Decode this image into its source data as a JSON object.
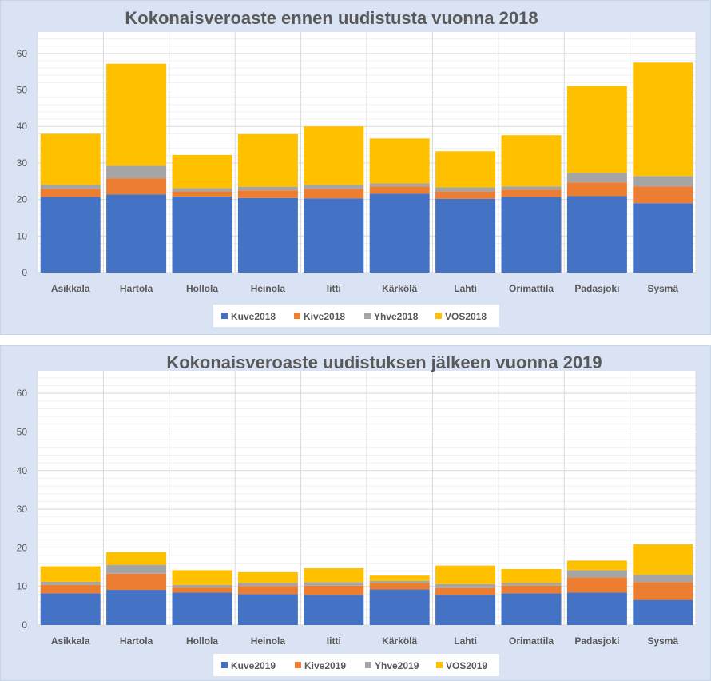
{
  "chart_data": [
    {
      "type": "bar",
      "stacked": true,
      "title": "Kokonaisveroaste ennen uudistusta vuonna 2018",
      "categories": [
        "Asikkala",
        "Hartola",
        "Hollola",
        "Heinola",
        "Iitti",
        "Kärkölä",
        "Lahti",
        "Orimattila",
        "Padasjoki",
        "Sysmä"
      ],
      "series": [
        {
          "name": "Kuve2018",
          "color": "#4472c4",
          "values": [
            20.7,
            21.4,
            20.8,
            20.4,
            20.3,
            21.6,
            20.2,
            20.7,
            20.9,
            19.0
          ]
        },
        {
          "name": "Kive2018",
          "color": "#ed7d31",
          "values": [
            2.2,
            4.4,
            1.4,
            2.1,
            2.6,
            2.0,
            2.0,
            2.0,
            3.8,
            4.6
          ]
        },
        {
          "name": "Yhve2018",
          "color": "#a5a5a5",
          "values": [
            1.1,
            3.4,
            0.9,
            1.0,
            1.1,
            0.8,
            1.1,
            0.9,
            2.6,
            2.8
          ]
        },
        {
          "name": "VOS2018",
          "color": "#ffc000",
          "values": [
            14.0,
            28.0,
            9.1,
            14.4,
            16.0,
            12.3,
            9.9,
            14.0,
            23.8,
            31.1
          ]
        }
      ],
      "ylim": [
        0,
        65
      ],
      "yticks": [
        0,
        10,
        20,
        30,
        40,
        50,
        60
      ],
      "grid": true,
      "legend": "bottom"
    },
    {
      "type": "bar",
      "stacked": true,
      "title": "Kokonaisveroaste uudistuksen jälkeen vuonna 2019",
      "categories": [
        "Asikkala",
        "Hartola",
        "Hollola",
        "Heinola",
        "Iitti",
        "Kärkölä",
        "Lahti",
        "Orimattila",
        "Padasjoki",
        "Sysmä"
      ],
      "series": [
        {
          "name": "Kuve2019",
          "color": "#4472c4",
          "values": [
            8.2,
            9.1,
            8.4,
            8.0,
            7.8,
            9.2,
            7.8,
            8.2,
            8.4,
            6.5
          ]
        },
        {
          "name": "Kive2019",
          "color": "#ed7d31",
          "values": [
            2.2,
            4.2,
            1.3,
            2.1,
            2.4,
            1.6,
            1.8,
            2.0,
            3.9,
            4.6
          ]
        },
        {
          "name": "Yhve2019",
          "color": "#a5a5a5",
          "values": [
            0.8,
            2.3,
            0.7,
            0.8,
            0.9,
            0.6,
            1.0,
            0.7,
            1.9,
            1.9
          ]
        },
        {
          "name": "VOS2019",
          "color": "#ffc000",
          "values": [
            4.0,
            3.3,
            3.8,
            2.8,
            3.6,
            1.4,
            4.8,
            3.6,
            2.5,
            7.9
          ]
        }
      ],
      "ylim": [
        0,
        65
      ],
      "yticks": [
        0,
        10,
        20,
        30,
        40,
        50,
        60
      ],
      "grid": true,
      "legend": "bottom"
    }
  ]
}
